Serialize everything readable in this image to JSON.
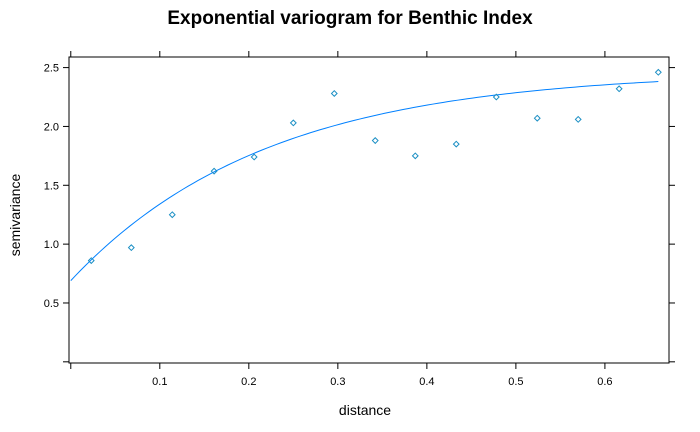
{
  "chart_data": {
    "type": "scatter",
    "title": "Exponential variogram for Benthic Index",
    "xlabel": "distance",
    "ylabel": "semivariance",
    "xlim": [
      -0.002,
      0.672
    ],
    "ylim": [
      -0.01,
      2.59
    ],
    "x_ticks": [
      {
        "value": 0.1,
        "label": "0.1"
      },
      {
        "value": 0.2,
        "label": "0.2"
      },
      {
        "value": 0.3,
        "label": "0.3"
      },
      {
        "value": 0.4,
        "label": "0.4"
      },
      {
        "value": 0.5,
        "label": "0.5"
      },
      {
        "value": 0.6,
        "label": "0.6"
      }
    ],
    "y_ticks": [
      {
        "value": 0.5,
        "label": "0.5"
      },
      {
        "value": 1.0,
        "label": "1.0"
      },
      {
        "value": 1.5,
        "label": "1.5"
      },
      {
        "value": 2.0,
        "label": "2.0"
      },
      {
        "value": 2.5,
        "label": "2.5"
      }
    ],
    "grid": false,
    "points": [
      {
        "x": 0.023,
        "y": 0.86
      },
      {
        "x": 0.068,
        "y": 0.97
      },
      {
        "x": 0.114,
        "y": 1.25
      },
      {
        "x": 0.161,
        "y": 1.62
      },
      {
        "x": 0.206,
        "y": 1.74
      },
      {
        "x": 0.25,
        "y": 2.03
      },
      {
        "x": 0.296,
        "y": 2.28
      },
      {
        "x": 0.342,
        "y": 1.88
      },
      {
        "x": 0.387,
        "y": 1.75
      },
      {
        "x": 0.433,
        "y": 1.85
      },
      {
        "x": 0.478,
        "y": 2.25
      },
      {
        "x": 0.524,
        "y": 2.07
      },
      {
        "x": 0.57,
        "y": 2.06
      },
      {
        "x": 0.616,
        "y": 2.32
      },
      {
        "x": 0.66,
        "y": 2.46
      }
    ],
    "model": {
      "type": "exponential",
      "nugget": 0.69,
      "psill": 1.78,
      "range": 0.22,
      "x_range": [
        0.0,
        0.66
      ]
    },
    "colors": {
      "points": "#1b8fc4",
      "fit_line": "#0080ff",
      "axes": "#000000"
    }
  }
}
